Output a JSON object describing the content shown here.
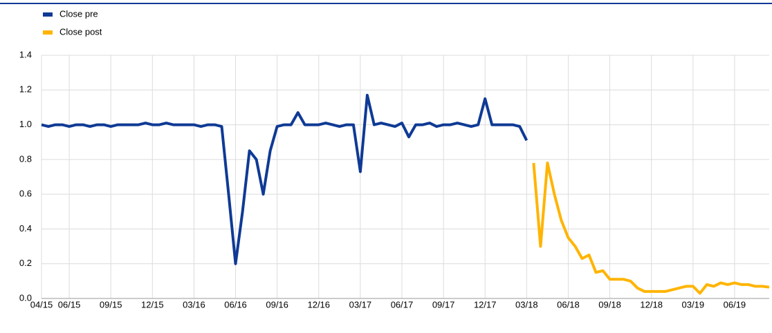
{
  "chart_data": {
    "type": "line",
    "x": [
      "2015-04",
      "2015-04",
      "2015-05",
      "2015-05",
      "2015-06",
      "2015-06",
      "2015-07",
      "2015-07",
      "2015-08",
      "2015-08",
      "2015-09",
      "2015-09",
      "2015-10",
      "2015-10",
      "2015-11",
      "2015-11",
      "2015-12",
      "2015-12",
      "2016-01",
      "2016-01",
      "2016-02",
      "2016-02",
      "2016-03",
      "2016-03",
      "2016-04",
      "2016-04",
      "2016-05",
      "2016-05",
      "2016-06",
      "2016-06",
      "2016-07",
      "2016-07",
      "2016-08",
      "2016-08",
      "2016-09",
      "2016-09",
      "2016-10",
      "2016-10",
      "2016-11",
      "2016-11",
      "2016-12",
      "2016-12",
      "2017-01",
      "2017-01",
      "2017-02",
      "2017-02",
      "2017-03",
      "2017-03",
      "2017-04",
      "2017-04",
      "2017-05",
      "2017-05",
      "2017-06",
      "2017-06",
      "2017-07",
      "2017-07",
      "2017-08",
      "2017-08",
      "2017-09",
      "2017-09",
      "2017-10",
      "2017-10",
      "2017-11",
      "2017-11",
      "2017-12",
      "2017-12",
      "2018-01",
      "2018-01",
      "2018-02",
      "2018-02",
      "2018-03",
      "2018-03",
      "2018-04",
      "2018-04",
      "2018-05",
      "2018-05",
      "2018-06",
      "2018-06",
      "2018-07",
      "2018-07",
      "2018-08",
      "2018-08",
      "2018-09",
      "2018-09",
      "2018-10",
      "2018-10",
      "2018-11",
      "2018-11",
      "2018-12",
      "2018-12",
      "2019-01",
      "2019-01",
      "2019-02",
      "2019-02",
      "2019-03",
      "2019-03",
      "2019-04",
      "2019-04",
      "2019-05",
      "2019-05",
      "2019-06",
      "2019-06",
      "2019-07",
      "2019-07",
      "2019-08",
      "2019-08"
    ],
    "series": [
      {
        "name": "Close pre",
        "color": "#0f3a95",
        "values": [
          1.0,
          0.99,
          1.0,
          1.0,
          0.99,
          1.0,
          1.0,
          0.99,
          1.0,
          1.0,
          0.99,
          1.0,
          1.0,
          1.0,
          1.0,
          1.01,
          1.0,
          1.0,
          1.01,
          1.0,
          1.0,
          1.0,
          1.0,
          0.99,
          1.0,
          1.0,
          0.99,
          0.6,
          0.2,
          0.5,
          0.85,
          0.8,
          0.6,
          0.85,
          0.99,
          1.0,
          1.0,
          1.07,
          1.0,
          1.0,
          1.0,
          1.01,
          1.0,
          0.99,
          1.0,
          1.0,
          0.73,
          1.17,
          1.0,
          1.01,
          1.0,
          0.99,
          1.01,
          0.93,
          1.0,
          1.0,
          1.01,
          0.99,
          1.0,
          1.0,
          1.01,
          1.0,
          0.99,
          1.0,
          1.15,
          1.0,
          1.0,
          1.0,
          1.0,
          0.99,
          0.91,
          null,
          null,
          null,
          null,
          null,
          null,
          null,
          null,
          null,
          null,
          null,
          null,
          null,
          null,
          null,
          null,
          null,
          null,
          null,
          null,
          null,
          null,
          null,
          null,
          null,
          null,
          null,
          null,
          null,
          null,
          null,
          null,
          null,
          null,
          null
        ]
      },
      {
        "name": "Close post",
        "color": "#ffb400",
        "values": [
          null,
          null,
          null,
          null,
          null,
          null,
          null,
          null,
          null,
          null,
          null,
          null,
          null,
          null,
          null,
          null,
          null,
          null,
          null,
          null,
          null,
          null,
          null,
          null,
          null,
          null,
          null,
          null,
          null,
          null,
          null,
          null,
          null,
          null,
          null,
          null,
          null,
          null,
          null,
          null,
          null,
          null,
          null,
          null,
          null,
          null,
          null,
          null,
          null,
          null,
          null,
          null,
          null,
          null,
          null,
          null,
          null,
          null,
          null,
          null,
          null,
          null,
          null,
          null,
          null,
          null,
          null,
          null,
          null,
          null,
          null,
          0.78,
          0.3,
          0.78,
          0.6,
          0.45,
          0.35,
          0.3,
          0.23,
          0.25,
          0.15,
          0.16,
          0.11,
          0.11,
          0.11,
          0.1,
          0.06,
          0.04,
          0.04,
          0.04,
          0.04,
          0.05,
          0.06,
          0.07,
          0.07,
          0.03,
          0.08,
          0.07,
          0.09,
          0.08,
          0.09,
          0.08,
          0.08,
          0.07,
          0.07,
          0.065
        ]
      }
    ],
    "ylim": [
      0,
      1.4
    ],
    "yticks": [
      {
        "value": 0,
        "label": "0.0"
      },
      0.2,
      0.4,
      0.6,
      0.8,
      {
        "value": 1,
        "label": "1.0"
      },
      1.2,
      1.4
    ],
    "xticks": [
      {
        "value": "2015-04",
        "label": "04/15"
      },
      {
        "value": "2015-06",
        "label": "06/15"
      },
      {
        "value": "2015-09",
        "label": "09/15"
      },
      {
        "value": "2015-12",
        "label": "12/15"
      },
      {
        "value": "2016-03",
        "label": "03/16"
      },
      {
        "value": "2016-06",
        "label": "06/16"
      },
      {
        "value": "2016-09",
        "label": "09/16"
      },
      {
        "value": "2016-12",
        "label": "12/16"
      },
      {
        "value": "2017-03",
        "label": "03/17"
      },
      {
        "value": "2017-06",
        "label": "06/17"
      },
      {
        "value": "2017-09",
        "label": "09/17"
      },
      {
        "value": "2017-12",
        "label": "12/17"
      },
      {
        "value": "2018-03",
        "label": "03/18"
      },
      {
        "value": "2018-06",
        "label": "06/18"
      },
      {
        "value": "2018-09",
        "label": "09/18"
      },
      {
        "value": "2018-12",
        "label": "12/18"
      },
      {
        "value": "2019-03",
        "label": "03/19"
      },
      {
        "value": "2019-06",
        "label": "06/19"
      }
    ],
    "grid": true
  }
}
